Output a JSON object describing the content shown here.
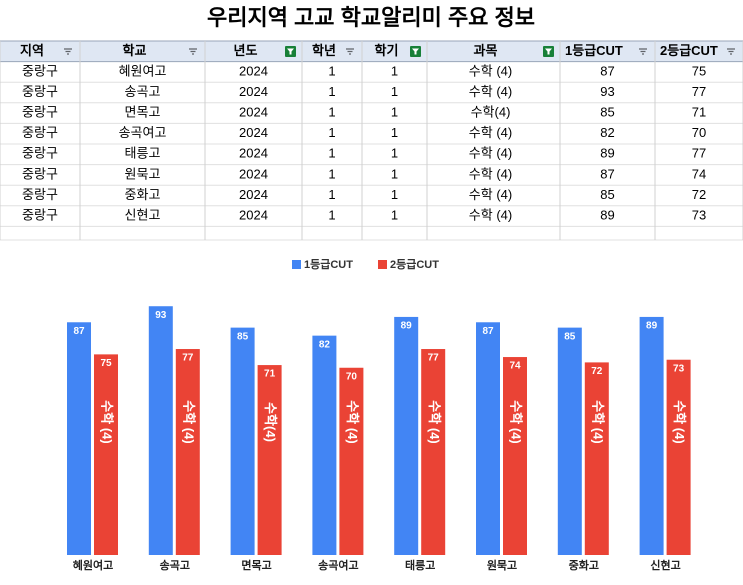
{
  "title": "우리지역 고교 학교알리미 주요 정보",
  "table": {
    "columns": [
      "지역",
      "학교",
      "년도",
      "학년",
      "학기",
      "과목",
      "1등급CUT",
      "2등급CUT"
    ],
    "rows": [
      [
        "중랑구",
        "혜원여고",
        2024,
        1,
        1,
        "수학 (4)",
        87,
        75
      ],
      [
        "중랑구",
        "송곡고",
        2024,
        1,
        1,
        "수학 (4)",
        93,
        77
      ],
      [
        "중랑구",
        "면목고",
        2024,
        1,
        1,
        "수학(4)",
        85,
        71
      ],
      [
        "중랑구",
        "송곡여고",
        2024,
        1,
        1,
        "수학 (4)",
        82,
        70
      ],
      [
        "중랑구",
        "태릉고",
        2024,
        1,
        1,
        "수학 (4)",
        89,
        77
      ],
      [
        "중랑구",
        "원묵고",
        2024,
        1,
        1,
        "수학 (4)",
        87,
        74
      ],
      [
        "중랑구",
        "중화고",
        2024,
        1,
        1,
        "수학 (4)",
        85,
        72
      ],
      [
        "중랑구",
        "신현고",
        2024,
        1,
        1,
        "수학 (4)",
        89,
        73
      ]
    ]
  },
  "chart_data": {
    "type": "bar",
    "categories": [
      "혜원여고",
      "송곡고",
      "면목고",
      "송곡여고",
      "태릉고",
      "원묵고",
      "중화고",
      "신현고"
    ],
    "series": [
      {
        "name": "1등급CUT",
        "color": "#4285f4",
        "values": [
          87,
          93,
          85,
          82,
          89,
          87,
          85,
          89
        ]
      },
      {
        "name": "2등급CUT",
        "color": "#ea4335",
        "values": [
          75,
          77,
          71,
          70,
          77,
          74,
          72,
          73
        ]
      }
    ]
  }
}
